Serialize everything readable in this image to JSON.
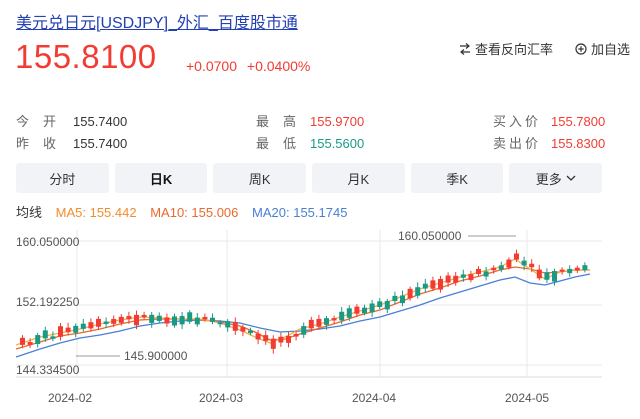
{
  "header": {
    "title": "美元兑日元[USDJPY]_外汇_百度股市通",
    "price": "155.8100",
    "change": "+0.0700",
    "change_pct": "+0.0400%",
    "compare_label": "查看反向汇率",
    "watch_label": "加自选"
  },
  "stats": {
    "open_label": "今开",
    "open": "155.7400",
    "prev_close_label": "昨收",
    "prev_close": "155.7400",
    "high_label": "最高",
    "high": "155.9700",
    "low_label": "最低",
    "low": "155.5600",
    "bid_label": "买入价",
    "bid": "155.7800",
    "ask_label": "卖出价",
    "ask": "155.8300"
  },
  "tabs": [
    "分时",
    "日K",
    "周K",
    "月K",
    "季K",
    "更多"
  ],
  "active_tab": 1,
  "ma": {
    "label": "均线",
    "ma5": "MA5: 155.442",
    "ma10": "MA10: 155.006",
    "ma20": "MA20: 155.1745"
  },
  "colors": {
    "up": "#f23b33",
    "down": "#1a9a85",
    "ma5": "#f08d2e",
    "ma10": "#e86a2e",
    "ma20": "#4a7fd4"
  },
  "chart_data": {
    "type": "candlestick",
    "y_ticks": [
      "160.050000",
      "152.192250",
      "144.334500"
    ],
    "y_range": [
      144.3345,
      160.05
    ],
    "x_ticks": [
      "2024-02",
      "2024-03",
      "2024-04",
      "2024-05"
    ],
    "annotations": {
      "max": "160.050000",
      "min": "145.900000"
    },
    "grid": true
  }
}
